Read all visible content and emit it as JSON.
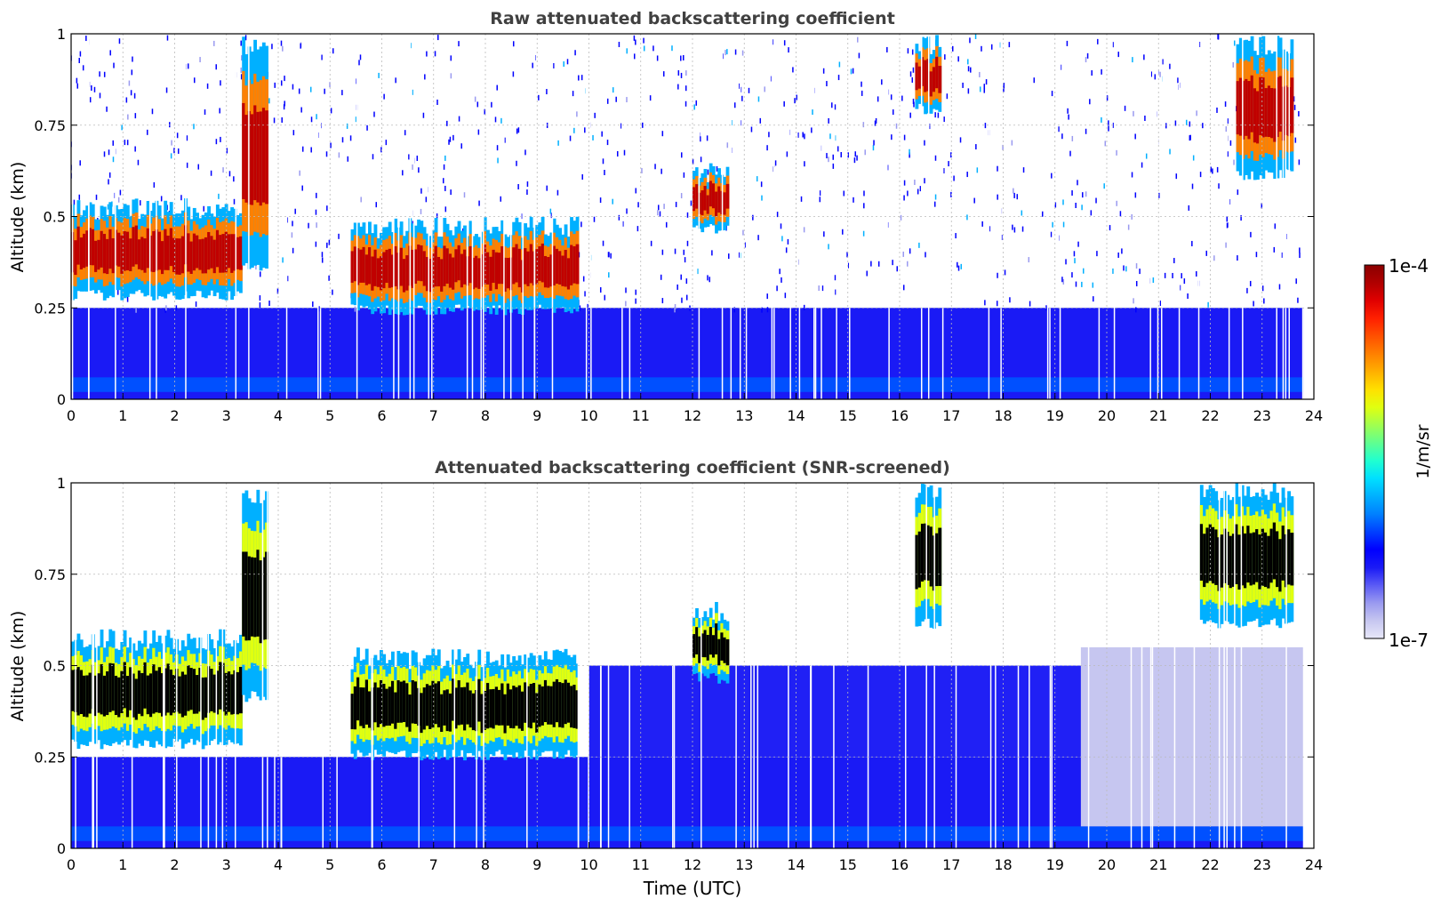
{
  "chart_data": [
    {
      "type": "heatmap",
      "title": "Raw attenuated backscattering coefficient",
      "xlabel": "",
      "ylabel": "Altitude (km)",
      "xlim": [
        0,
        24
      ],
      "ylim": [
        0,
        1
      ],
      "x_ticks": [
        "0",
        "1",
        "2",
        "3",
        "4",
        "5",
        "6",
        "7",
        "8",
        "9",
        "10",
        "11",
        "12",
        "13",
        "14",
        "15",
        "16",
        "17",
        "18",
        "19",
        "20",
        "21",
        "22",
        "23",
        "24"
      ],
      "y_ticks": [
        "0",
        "0.25",
        "0.5",
        "0.75",
        "1"
      ],
      "grid": true,
      "layers": [
        {
          "t0": 0.0,
          "t1": 3.3,
          "base_km": 0.27,
          "top_km": 0.55,
          "level": "high"
        },
        {
          "t0": 3.3,
          "t1": 3.8,
          "base_km": 0.35,
          "top_km": 1.0,
          "level": "high"
        },
        {
          "t0": 5.4,
          "t1": 9.8,
          "base_km": 0.23,
          "top_km": 0.5,
          "level": "high"
        },
        {
          "t0": 12.0,
          "t1": 12.7,
          "base_km": 0.45,
          "top_km": 0.65,
          "level": "high"
        },
        {
          "t0": 16.3,
          "t1": 16.8,
          "base_km": 0.78,
          "top_km": 1.0,
          "level": "high"
        },
        {
          "t0": 22.5,
          "t1": 23.6,
          "base_km": 0.6,
          "top_km": 1.0,
          "level": "high"
        }
      ]
    },
    {
      "type": "heatmap",
      "title": "Attenuated backscattering coefficient (SNR-screened)",
      "xlabel": "Time (UTC)",
      "ylabel": "Altitude (km)",
      "xlim": [
        0,
        24
      ],
      "ylim": [
        0,
        1
      ],
      "x_ticks": [
        "0",
        "1",
        "2",
        "3",
        "4",
        "5",
        "6",
        "7",
        "8",
        "9",
        "10",
        "11",
        "12",
        "13",
        "14",
        "15",
        "16",
        "17",
        "18",
        "19",
        "20",
        "21",
        "22",
        "23",
        "24"
      ],
      "y_ticks": [
        "0",
        "0.25",
        "0.5",
        "0.75",
        "1"
      ],
      "grid": true,
      "layers": [
        {
          "t0": 0.0,
          "t1": 3.3,
          "base_km": 0.27,
          "top_km": 0.6,
          "level": "high"
        },
        {
          "t0": 3.3,
          "t1": 3.8,
          "base_km": 0.4,
          "top_km": 1.0,
          "level": "high"
        },
        {
          "t0": 5.4,
          "t1": 9.8,
          "base_km": 0.24,
          "top_km": 0.55,
          "level": "high"
        },
        {
          "t0": 12.0,
          "t1": 12.7,
          "base_km": 0.45,
          "top_km": 0.68,
          "level": "high"
        },
        {
          "t0": 16.3,
          "t1": 16.8,
          "base_km": 0.6,
          "top_km": 1.0,
          "level": "high"
        },
        {
          "t0": 21.8,
          "t1": 23.6,
          "base_km": 0.6,
          "top_km": 1.0,
          "level": "high"
        }
      ]
    }
  ],
  "colorbar": {
    "label": "1/m/sr",
    "max_label": "1e-4",
    "min_label": "1e-7",
    "colors": [
      "#e8e8f8",
      "#c6c6f0",
      "#9a9af0",
      "#5a5af5",
      "#1a1af5",
      "#0000ff",
      "#0040ff",
      "#0080ff",
      "#00b0ff",
      "#00e0ff",
      "#20ffd0",
      "#60ff90",
      "#a0ff50",
      "#e0ff10",
      "#ffe000",
      "#ffb000",
      "#ff8000",
      "#ff5000",
      "#ff2000",
      "#e00000",
      "#b00000",
      "#8b0000"
    ]
  }
}
